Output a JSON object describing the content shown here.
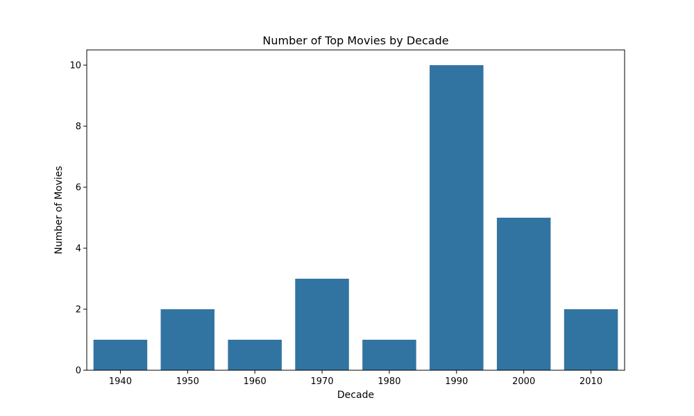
{
  "chart_data": {
    "type": "bar",
    "title": "Number of Top Movies by Decade",
    "xlabel": "Decade",
    "ylabel": "Number of Movies",
    "categories": [
      "1940",
      "1950",
      "1960",
      "1970",
      "1980",
      "1990",
      "2000",
      "2010"
    ],
    "values": [
      1,
      2,
      1,
      3,
      1,
      10,
      5,
      2
    ],
    "ylim": [
      0,
      10.5
    ],
    "yticks": [
      0,
      2,
      4,
      6,
      8,
      10
    ],
    "grid": false,
    "legend": "none",
    "bar_color": "#3274a1"
  }
}
